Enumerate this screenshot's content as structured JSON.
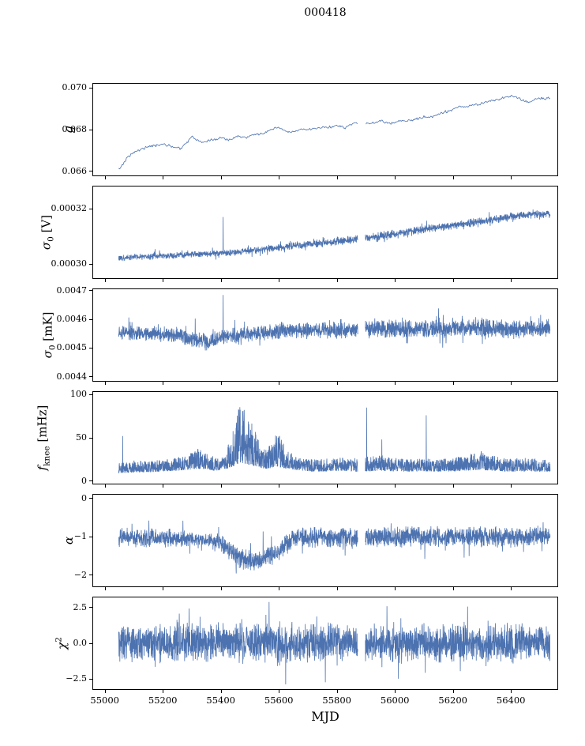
{
  "title": "000418",
  "xlabel": "MJD",
  "line_color": "#4c72b0",
  "axis_color": "#000000",
  "x_range": [
    55048,
    56535
  ],
  "xlim": [
    54960,
    56560
  ],
  "xticks": [
    55000,
    55200,
    55400,
    55600,
    55800,
    56000,
    56200,
    56400
  ],
  "xtick_labels": [
    "55000",
    "55200",
    "55400",
    "55600",
    "55800",
    "56000",
    "56200",
    "56400"
  ],
  "gap": [
    55872,
    55898
  ],
  "chart_data": [
    {
      "id": "g",
      "type": "line",
      "ylabel": {
        "variable": "g",
        "subscript": "",
        "superscript": "",
        "unit": ""
      },
      "ylim": [
        0.0658,
        0.0702
      ],
      "yticks": [
        0.066,
        0.068,
        0.07
      ],
      "ytick_labels": [
        "0.066",
        "0.068",
        "0.070"
      ],
      "mode": "line",
      "points": 500,
      "noise": 6e-05,
      "trend": [
        [
          55050,
          0.0661
        ],
        [
          55065,
          0.0664
        ],
        [
          55080,
          0.0667
        ],
        [
          55100,
          0.0669
        ],
        [
          55130,
          0.0671
        ],
        [
          55160,
          0.0672
        ],
        [
          55200,
          0.0673
        ],
        [
          55230,
          0.0672
        ],
        [
          55260,
          0.0671
        ],
        [
          55285,
          0.0674
        ],
        [
          55300,
          0.0677
        ],
        [
          55315,
          0.0675
        ],
        [
          55340,
          0.0674
        ],
        [
          55370,
          0.0675
        ],
        [
          55400,
          0.0676
        ],
        [
          55430,
          0.0675
        ],
        [
          55460,
          0.0677
        ],
        [
          55490,
          0.0676
        ],
        [
          55520,
          0.0678
        ],
        [
          55550,
          0.0678
        ],
        [
          55575,
          0.068
        ],
        [
          55600,
          0.0681
        ],
        [
          55625,
          0.0679
        ],
        [
          55650,
          0.0679
        ],
        [
          55680,
          0.068
        ],
        [
          55710,
          0.068
        ],
        [
          55740,
          0.0681
        ],
        [
          55770,
          0.0681
        ],
        [
          55800,
          0.0682
        ],
        [
          55830,
          0.0681
        ],
        [
          55860,
          0.0683
        ],
        [
          55890,
          0.0683
        ],
        [
          55920,
          0.0683
        ],
        [
          55950,
          0.0684
        ],
        [
          55980,
          0.0683
        ],
        [
          56010,
          0.0684
        ],
        [
          56040,
          0.0684
        ],
        [
          56070,
          0.0685
        ],
        [
          56100,
          0.0686
        ],
        [
          56130,
          0.0686
        ],
        [
          56160,
          0.0688
        ],
        [
          56190,
          0.0689
        ],
        [
          56220,
          0.0691
        ],
        [
          56250,
          0.0691
        ],
        [
          56280,
          0.0692
        ],
        [
          56310,
          0.0693
        ],
        [
          56340,
          0.0694
        ],
        [
          56370,
          0.0695
        ],
        [
          56400,
          0.0696
        ],
        [
          56430,
          0.0695
        ],
        [
          56460,
          0.0693
        ],
        [
          56490,
          0.0695
        ],
        [
          56535,
          0.0695
        ]
      ]
    },
    {
      "id": "sigma0-v",
      "type": "line",
      "ylabel": {
        "variable": "σ",
        "subscript": "0",
        "superscript": "",
        "unit": "[V]"
      },
      "ylim": [
        0.000295,
        0.000328
      ],
      "yticks": [
        0.0003,
        0.00032
      ],
      "ytick_labels": [
        "0.00030",
        "0.00032"
      ],
      "mode": "band",
      "points": 2600,
      "env": [
        [
          55050,
          0.0003,
          0.0003045
        ],
        [
          55150,
          0.0003005,
          0.000305
        ],
        [
          55250,
          0.000301,
          0.0003055
        ],
        [
          55350,
          0.0003015,
          0.000306
        ],
        [
          55450,
          0.000302,
          0.0003065
        ],
        [
          55550,
          0.000303,
          0.000308
        ],
        [
          55650,
          0.000304,
          0.000309
        ],
        [
          55750,
          0.000305,
          0.0003105
        ],
        [
          55850,
          0.000306,
          0.0003115
        ],
        [
          55950,
          0.0003075,
          0.000313
        ],
        [
          56050,
          0.000309,
          0.0003145
        ],
        [
          56150,
          0.0003105,
          0.000316
        ],
        [
          56250,
          0.000312,
          0.0003175
        ],
        [
          56350,
          0.0003135,
          0.000319
        ],
        [
          56430,
          0.000315,
          0.0003205
        ],
        [
          56535,
          0.0003155,
          0.000321
        ]
      ],
      "spikes": [
        [
          55408,
          0.000317
        ]
      ]
    },
    {
      "id": "sigma0-mk",
      "type": "line",
      "ylabel": {
        "variable": "σ",
        "subscript": "0",
        "superscript": "",
        "unit": "[mK]"
      },
      "ylim": [
        0.004385,
        0.004705
      ],
      "yticks": [
        0.0044,
        0.0045,
        0.0046,
        0.0047
      ],
      "ytick_labels": [
        "0.0044",
        "0.0045",
        "0.0046",
        "0.0047"
      ],
      "mode": "band",
      "points": 2600,
      "env": [
        [
          55050,
          0.004505,
          0.004605
        ],
        [
          55150,
          0.004505,
          0.0046
        ],
        [
          55250,
          0.004495,
          0.004595
        ],
        [
          55320,
          0.00447,
          0.00458
        ],
        [
          55360,
          0.004465,
          0.004575
        ],
        [
          55420,
          0.00449,
          0.00459
        ],
        [
          55500,
          0.0045,
          0.0046
        ],
        [
          55600,
          0.004505,
          0.00461
        ],
        [
          55700,
          0.00451,
          0.004615
        ],
        [
          55800,
          0.004505,
          0.004615
        ],
        [
          55900,
          0.00451,
          0.00462
        ],
        [
          56000,
          0.004505,
          0.004625
        ],
        [
          56100,
          0.0045,
          0.00463
        ],
        [
          56200,
          0.00451,
          0.00463
        ],
        [
          56300,
          0.00451,
          0.004635
        ],
        [
          56400,
          0.004505,
          0.004625
        ],
        [
          56535,
          0.004515,
          0.00462
        ]
      ],
      "spikes": [
        [
          55408,
          0.004685
        ]
      ]
    },
    {
      "id": "fknee",
      "type": "line",
      "ylabel": {
        "variable": "f",
        "subscript": "knee",
        "superscript": "",
        "unit": "[mHz]"
      },
      "ylim": [
        -3,
        103
      ],
      "yticks": [
        0,
        50,
        100
      ],
      "ytick_labels": [
        "0",
        "50",
        "100"
      ],
      "mode": "band-up",
      "points": 2600,
      "env": [
        [
          55050,
          9,
          22
        ],
        [
          55100,
          10,
          24
        ],
        [
          55150,
          10,
          23
        ],
        [
          55200,
          11,
          25
        ],
        [
          55250,
          12,
          27
        ],
        [
          55290,
          13,
          32
        ],
        [
          55320,
          14,
          38
        ],
        [
          55350,
          13,
          33
        ],
        [
          55380,
          12,
          28
        ],
        [
          55410,
          13,
          30
        ],
        [
          55430,
          15,
          48
        ],
        [
          55450,
          18,
          70
        ],
        [
          55465,
          20,
          88
        ],
        [
          55480,
          20,
          85
        ],
        [
          55495,
          19,
          75
        ],
        [
          55510,
          18,
          65
        ],
        [
          55525,
          16,
          52
        ],
        [
          55540,
          15,
          42
        ],
        [
          55555,
          14,
          36
        ],
        [
          55570,
          15,
          44
        ],
        [
          55585,
          16,
          52
        ],
        [
          55600,
          16,
          55
        ],
        [
          55615,
          15,
          48
        ],
        [
          55630,
          14,
          38
        ],
        [
          55650,
          13,
          30
        ],
        [
          55680,
          12,
          27
        ],
        [
          55720,
          11,
          25
        ],
        [
          55760,
          11,
          26
        ],
        [
          55800,
          12,
          28
        ],
        [
          55850,
          11,
          26
        ],
        [
          55900,
          11,
          28
        ],
        [
          55950,
          12,
          30
        ],
        [
          56000,
          11,
          27
        ],
        [
          56050,
          11,
          25
        ],
        [
          56100,
          11,
          26
        ],
        [
          56150,
          11,
          25
        ],
        [
          56200,
          11,
          27
        ],
        [
          56250,
          12,
          30
        ],
        [
          56290,
          13,
          36
        ],
        [
          56330,
          12,
          30
        ],
        [
          56380,
          11,
          26
        ],
        [
          56430,
          11,
          27
        ],
        [
          56480,
          11,
          26
        ],
        [
          56535,
          11,
          24
        ]
      ],
      "spikes": [
        [
          55062,
          52
        ],
        [
          55903,
          85
        ],
        [
          55955,
          48
        ],
        [
          56108,
          76
        ]
      ]
    },
    {
      "id": "alpha",
      "type": "line",
      "ylabel": {
        "variable": "α",
        "subscript": "",
        "superscript": "",
        "unit": ""
      },
      "ylim": [
        -2.3,
        0.1
      ],
      "yticks": [
        0,
        -1,
        -2
      ],
      "ytick_labels": [
        "0",
        "−1",
        "−2"
      ],
      "mode": "band",
      "points": 2600,
      "env": [
        [
          55050,
          -1.45,
          -0.55
        ],
        [
          55150,
          -1.5,
          -0.55
        ],
        [
          55250,
          -1.5,
          -0.6
        ],
        [
          55300,
          -1.45,
          -0.7
        ],
        [
          55330,
          -1.35,
          -0.8
        ],
        [
          55360,
          -1.4,
          -0.75
        ],
        [
          55390,
          -1.55,
          -0.65
        ],
        [
          55420,
          -1.75,
          -0.85
        ],
        [
          55450,
          -1.95,
          -1.0
        ],
        [
          55480,
          -2.1,
          -1.1
        ],
        [
          55510,
          -2.15,
          -1.15
        ],
        [
          55540,
          -2.1,
          -1.1
        ],
        [
          55570,
          -2.0,
          -1.0
        ],
        [
          55600,
          -1.9,
          -0.85
        ],
        [
          55620,
          -1.75,
          -0.7
        ],
        [
          55645,
          -1.6,
          -0.6
        ],
        [
          55670,
          -1.5,
          -0.55
        ],
        [
          55750,
          -1.5,
          -0.55
        ],
        [
          55850,
          -1.5,
          -0.55
        ],
        [
          55950,
          -1.5,
          -0.5
        ],
        [
          56050,
          -1.5,
          -0.5
        ],
        [
          56150,
          -1.5,
          -0.5
        ],
        [
          56250,
          -1.5,
          -0.5
        ],
        [
          56350,
          -1.5,
          -0.5
        ],
        [
          56450,
          -1.5,
          -0.5
        ],
        [
          56535,
          -1.45,
          -0.5
        ]
      ],
      "spikes": []
    },
    {
      "id": "chi2",
      "type": "line",
      "ylabel": {
        "variable": "χ",
        "subscript": "",
        "superscript": "2",
        "unit": ""
      },
      "ylim": [
        -3.2,
        3.2
      ],
      "yticks": [
        2.5,
        0.0,
        -2.5
      ],
      "ytick_labels": [
        "2.5",
        "0.0",
        "−2.5"
      ],
      "mode": "band",
      "points": 2600,
      "env": [
        [
          55050,
          -2.2,
          2.2
        ],
        [
          55200,
          -2.4,
          2.5
        ],
        [
          55350,
          -2.5,
          2.6
        ],
        [
          55500,
          -2.6,
          2.6
        ],
        [
          55650,
          -2.5,
          2.5
        ],
        [
          55800,
          -2.4,
          2.5
        ],
        [
          55950,
          -2.5,
          2.5
        ],
        [
          56100,
          -2.6,
          2.6
        ],
        [
          56250,
          -2.5,
          2.6
        ],
        [
          56400,
          -2.5,
          2.5
        ],
        [
          56535,
          -2.3,
          2.3
        ]
      ],
      "spikes": []
    }
  ]
}
